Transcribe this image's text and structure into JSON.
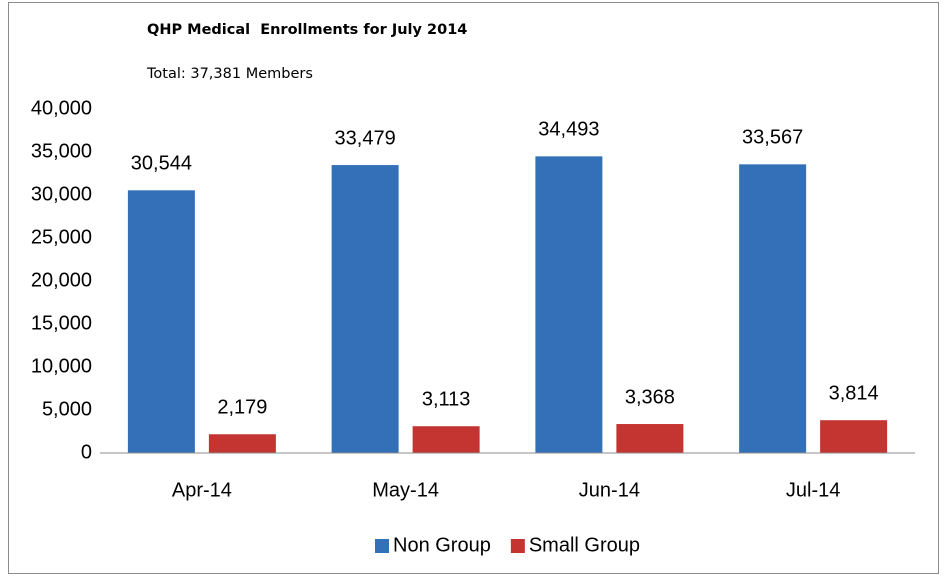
{
  "chart_data": {
    "type": "bar",
    "title": "QHP Medical  Enrollments for July 2014",
    "subtitle": "Total: 37,381 Members",
    "categories": [
      "Apr-14",
      "May-14",
      "Jun-14",
      "Jul-14"
    ],
    "series": [
      {
        "name": "Non Group",
        "color": "#3470b8",
        "values": [
          30544,
          33479,
          34493,
          33567
        ],
        "value_labels": [
          "30,544",
          "33,479",
          "34,493",
          "33,567"
        ]
      },
      {
        "name": "Small Group",
        "color": "#c43431",
        "values": [
          2179,
          3113,
          3368,
          3814
        ],
        "value_labels": [
          "2,179",
          "3,113",
          "3,368",
          "3,814"
        ]
      }
    ],
    "ylim": [
      0,
      40000
    ],
    "yticks": [
      0,
      {
        "value": 5000,
        "label": "5,000"
      },
      {
        "value": 10000,
        "label": "10,000"
      },
      {
        "value": 15000,
        "label": "15,000"
      },
      {
        "value": 20000,
        "label": "20,000"
      },
      {
        "value": 25000,
        "label": "25,000"
      },
      {
        "value": 30000,
        "label": "30,000"
      },
      {
        "value": 35000,
        "label": "35,000"
      },
      {
        "value": 40000,
        "label": "40,000"
      }
    ],
    "grid": false,
    "legend": "bottom"
  }
}
